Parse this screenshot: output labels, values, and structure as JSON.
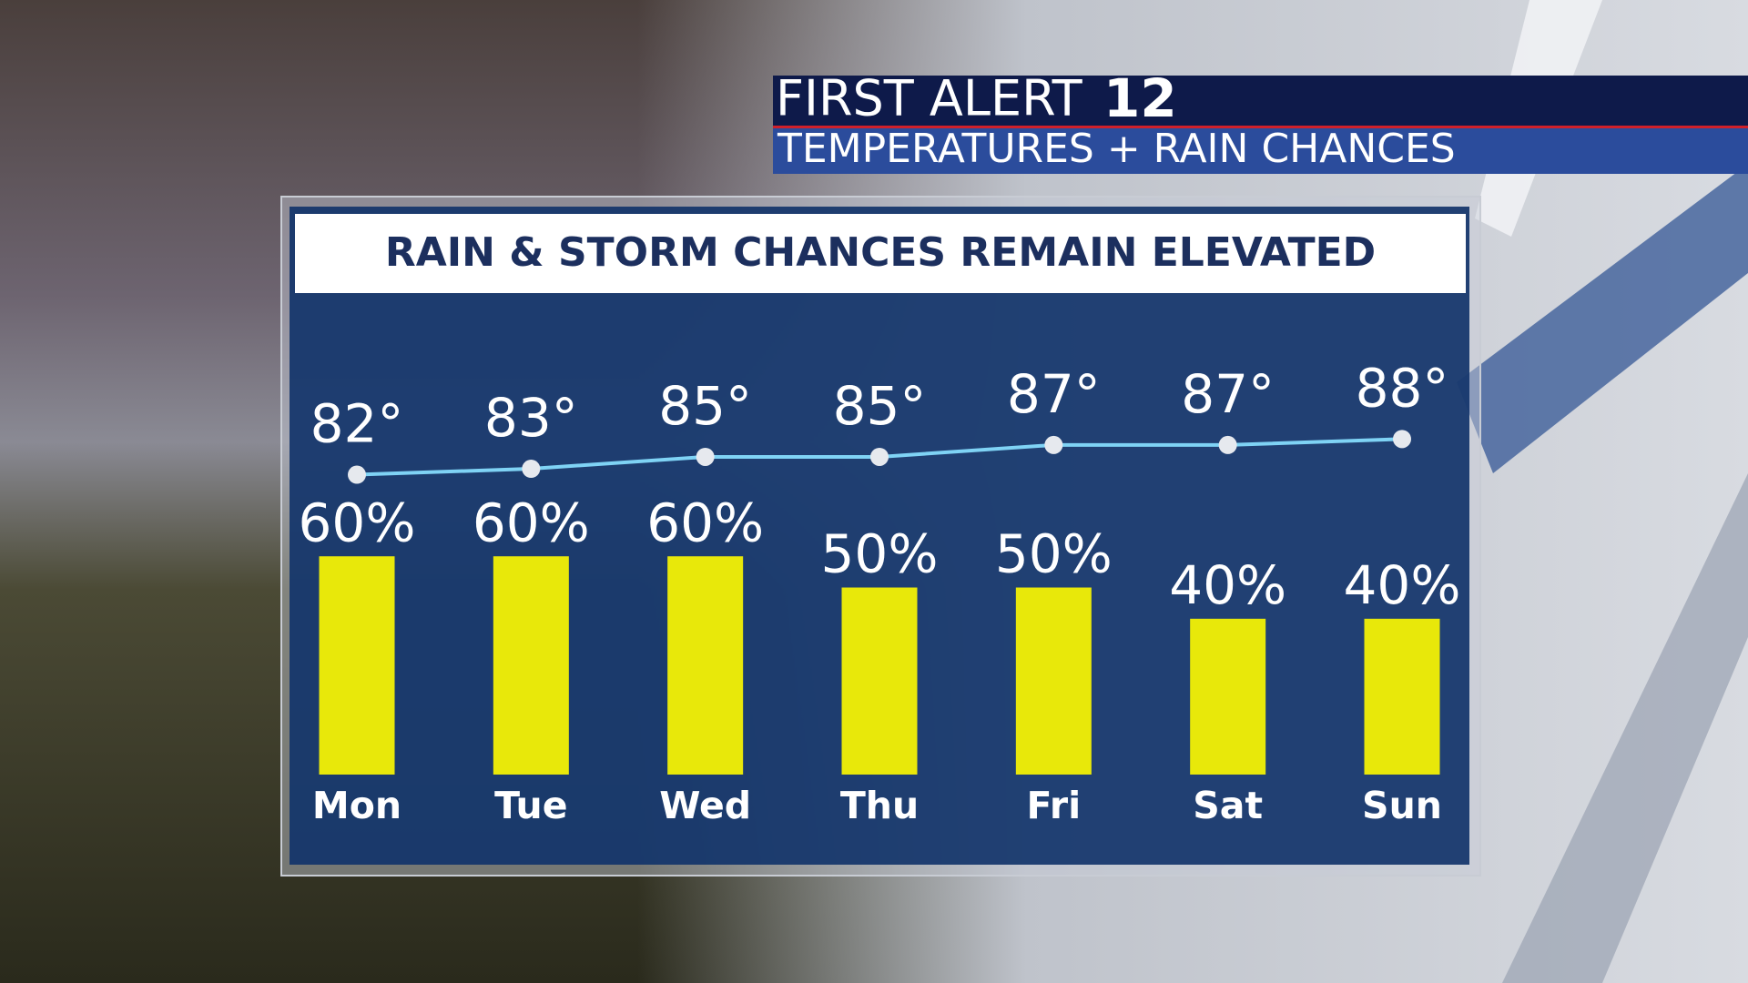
{
  "header": {
    "brand": "FIRST ALERT",
    "channel": "12",
    "subtitle": "TEMPERATURES + RAIN CHANCES"
  },
  "chart_data": {
    "type": "bar",
    "title": "RAIN & STORM CHANCES REMAIN ELEVATED",
    "categories": [
      "Mon",
      "Tue",
      "Wed",
      "Thu",
      "Fri",
      "Sat",
      "Sun"
    ],
    "series": [
      {
        "type": "line",
        "color": "#7fd3f5",
        "values": [
          82,
          83,
          85,
          85,
          87,
          87,
          88
        ],
        "value_labels": [
          "82°",
          "83°",
          "85°",
          "85°",
          "87°",
          "87°",
          "88°"
        ]
      },
      {
        "type": "bar",
        "color": "#e8e80a",
        "values": [
          60,
          60,
          60,
          50,
          50,
          40,
          40
        ],
        "value_labels": [
          "60%",
          "60%",
          "60%",
          "50%",
          "50%",
          "40%",
          "40%"
        ]
      }
    ]
  }
}
